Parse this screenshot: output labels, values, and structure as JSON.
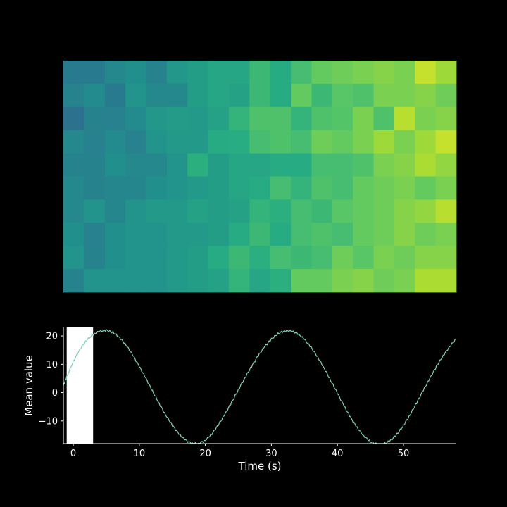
{
  "figure": {
    "background": "#000000",
    "foreground": "#ffffff"
  },
  "chart_data": [
    {
      "type": "heatmap",
      "title": "",
      "xlabel": "",
      "ylabel": "",
      "colormap": "viridis",
      "color_range": [
        0,
        1
      ],
      "axes_visible": false,
      "rows": 10,
      "cols": 19,
      "values": [
        [
          0.42,
          0.42,
          0.47,
          0.5,
          0.45,
          0.53,
          0.56,
          0.6,
          0.6,
          0.68,
          0.62,
          0.7,
          0.76,
          0.78,
          0.8,
          0.82,
          0.8,
          0.92,
          0.86
        ],
        [
          0.45,
          0.48,
          0.42,
          0.52,
          0.47,
          0.47,
          0.56,
          0.6,
          0.58,
          0.68,
          0.62,
          0.76,
          0.68,
          0.74,
          0.72,
          0.8,
          0.8,
          0.82,
          0.78
        ],
        [
          0.38,
          0.45,
          0.44,
          0.48,
          0.53,
          0.55,
          0.54,
          0.58,
          0.66,
          0.72,
          0.72,
          0.66,
          0.72,
          0.73,
          0.8,
          0.72,
          0.9,
          0.8,
          0.82
        ],
        [
          0.47,
          0.44,
          0.48,
          0.44,
          0.52,
          0.54,
          0.54,
          0.62,
          0.63,
          0.7,
          0.72,
          0.7,
          0.78,
          0.76,
          0.8,
          0.86,
          0.8,
          0.86,
          0.92
        ],
        [
          0.45,
          0.45,
          0.5,
          0.47,
          0.47,
          0.52,
          0.64,
          0.56,
          0.6,
          0.6,
          0.62,
          0.62,
          0.7,
          0.7,
          0.72,
          0.8,
          0.82,
          0.88,
          0.84
        ],
        [
          0.47,
          0.45,
          0.46,
          0.46,
          0.5,
          0.52,
          0.54,
          0.56,
          0.6,
          0.62,
          0.7,
          0.66,
          0.72,
          0.7,
          0.76,
          0.78,
          0.8,
          0.76,
          0.8
        ],
        [
          0.47,
          0.52,
          0.46,
          0.52,
          0.54,
          0.54,
          0.58,
          0.56,
          0.58,
          0.66,
          0.64,
          0.7,
          0.68,
          0.74,
          0.76,
          0.78,
          0.82,
          0.84,
          0.9
        ],
        [
          0.5,
          0.44,
          0.5,
          0.52,
          0.52,
          0.54,
          0.54,
          0.56,
          0.62,
          0.68,
          0.62,
          0.7,
          0.72,
          0.7,
          0.76,
          0.78,
          0.82,
          0.78,
          0.8
        ],
        [
          0.52,
          0.45,
          0.5,
          0.52,
          0.52,
          0.54,
          0.56,
          0.62,
          0.68,
          0.64,
          0.7,
          0.68,
          0.7,
          0.78,
          0.74,
          0.8,
          0.78,
          0.82,
          0.82
        ],
        [
          0.45,
          0.52,
          0.52,
          0.52,
          0.52,
          0.54,
          0.56,
          0.58,
          0.66,
          0.6,
          0.64,
          0.76,
          0.76,
          0.8,
          0.82,
          0.78,
          0.8,
          0.88,
          0.88
        ]
      ]
    },
    {
      "type": "line",
      "title": "",
      "xlabel": "Time (s)",
      "ylabel": "Mean value",
      "xlim": [
        -1.5,
        58
      ],
      "ylim": [
        -18,
        23
      ],
      "xticks": [
        0,
        10,
        20,
        30,
        40,
        50
      ],
      "yticks": [
        -10,
        0,
        10,
        20
      ],
      "grid": false,
      "line_color": "#7fd1b9",
      "highlight": {
        "x_range": [
          -1,
          3
        ],
        "color": "#ffffff"
      },
      "series": [
        {
          "x": [
            -1.5,
            -1,
            0,
            1,
            2,
            3,
            4,
            5,
            6,
            7,
            8,
            9,
            10,
            11,
            12,
            13,
            14,
            15,
            16,
            17,
            18,
            19,
            20,
            21,
            22,
            23,
            24,
            25,
            26,
            27,
            28,
            29,
            30,
            31,
            32,
            33,
            34,
            35,
            36,
            37,
            38,
            39,
            40,
            41,
            42,
            43,
            44,
            45,
            46,
            47,
            48,
            49,
            50,
            51,
            52,
            53,
            54,
            55,
            56,
            57,
            58
          ],
          "y": [
            2.5,
            5.5,
            11.0,
            15.3,
            18.5,
            20.5,
            21.7,
            22.0,
            21.3,
            19.5,
            16.8,
            13.3,
            9.2,
            5.0,
            0.5,
            -3.8,
            -7.9,
            -11.5,
            -14.6,
            -16.8,
            -18.0,
            -18.0,
            -16.8,
            -14.5,
            -11.3,
            -7.5,
            -3.3,
            1.0,
            5.3,
            9.3,
            13.0,
            16.3,
            18.9,
            20.8,
            21.8,
            21.8,
            20.8,
            18.8,
            16.0,
            12.6,
            8.6,
            4.2,
            -0.2,
            -4.7,
            -8.8,
            -12.4,
            -15.3,
            -17.3,
            -18.3,
            -18.2,
            -17.0,
            -14.7,
            -11.6,
            -7.8,
            -3.6,
            0.8,
            5.0,
            9.3,
            13.0,
            16.3,
            19.0
          ]
        }
      ]
    }
  ]
}
